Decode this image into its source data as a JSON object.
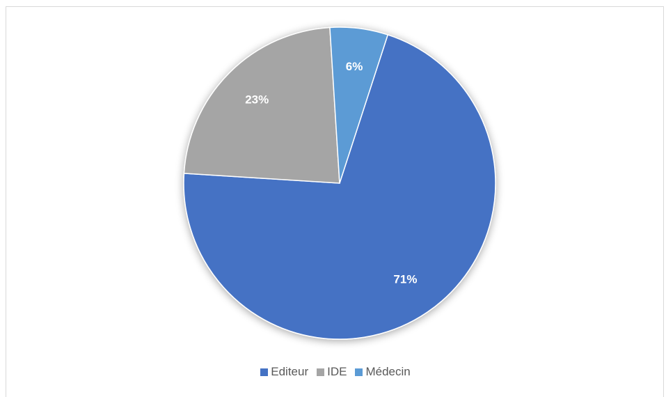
{
  "chart_data": {
    "type": "pie",
    "categories": [
      "Editeur",
      "IDE",
      "Médecin"
    ],
    "values": [
      71,
      23,
      6
    ],
    "labels": [
      "71%",
      "23%",
      "6%"
    ],
    "colors": [
      "#4472c4",
      "#a5a5a5",
      "#5b9bd5"
    ],
    "start_angle_deg": 18,
    "direction": "clockwise",
    "legend": "bottom"
  }
}
